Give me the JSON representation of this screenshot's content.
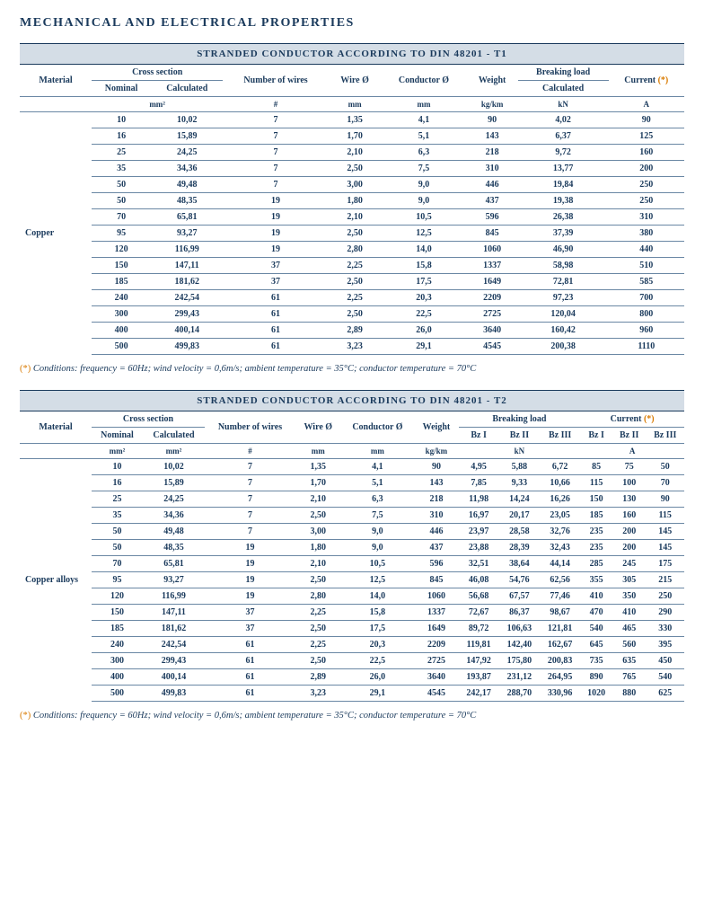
{
  "page_title": "MECHANICAL AND ELECTRICAL PROPERTIES",
  "footnote_mark": "(*)",
  "footnote": "Conditions: frequency = 60Hz; wind velocity = 0,6m/s; ambient temperature = 35°C; conductor temperature = 70°C",
  "t1": {
    "title": "STRANDED CONDUCTOR ACCORDING TO DIN 48201 - T1",
    "material": "Copper",
    "h": {
      "material": "Material",
      "cross": "Cross section",
      "nom": "Nominal",
      "calc": "Calculated",
      "nwires": "Number of wires",
      "wire": "Wire Ø",
      "cond": "Conductor Ø",
      "weight": "Weight",
      "break": "Breaking load",
      "current": "Current",
      "mm2": "mm²",
      "num": "#",
      "mm": "mm",
      "kgkm": "kg/km",
      "kn": "kN",
      "a": "A"
    },
    "rows": [
      [
        "10",
        "10,02",
        "7",
        "1,35",
        "4,1",
        "90",
        "4,02",
        "90"
      ],
      [
        "16",
        "15,89",
        "7",
        "1,70",
        "5,1",
        "143",
        "6,37",
        "125"
      ],
      [
        "25",
        "24,25",
        "7",
        "2,10",
        "6,3",
        "218",
        "9,72",
        "160"
      ],
      [
        "35",
        "34,36",
        "7",
        "2,50",
        "7,5",
        "310",
        "13,77",
        "200"
      ],
      [
        "50",
        "49,48",
        "7",
        "3,00",
        "9,0",
        "446",
        "19,84",
        "250"
      ],
      [
        "50",
        "48,35",
        "19",
        "1,80",
        "9,0",
        "437",
        "19,38",
        "250"
      ],
      [
        "70",
        "65,81",
        "19",
        "2,10",
        "10,5",
        "596",
        "26,38",
        "310"
      ],
      [
        "95",
        "93,27",
        "19",
        "2,50",
        "12,5",
        "845",
        "37,39",
        "380"
      ],
      [
        "120",
        "116,99",
        "19",
        "2,80",
        "14,0",
        "1060",
        "46,90",
        "440"
      ],
      [
        "150",
        "147,11",
        "37",
        "2,25",
        "15,8",
        "1337",
        "58,98",
        "510"
      ],
      [
        "185",
        "181,62",
        "37",
        "2,50",
        "17,5",
        "1649",
        "72,81",
        "585"
      ],
      [
        "240",
        "242,54",
        "61",
        "2,25",
        "20,3",
        "2209",
        "97,23",
        "700"
      ],
      [
        "300",
        "299,43",
        "61",
        "2,50",
        "22,5",
        "2725",
        "120,04",
        "800"
      ],
      [
        "400",
        "400,14",
        "61",
        "2,89",
        "26,0",
        "3640",
        "160,42",
        "960"
      ],
      [
        "500",
        "499,83",
        "61",
        "3,23",
        "29,1",
        "4545",
        "200,38",
        "1110"
      ]
    ]
  },
  "t2": {
    "title": "STRANDED CONDUCTOR ACCORDING TO DIN 48201 - T2",
    "material": "Copper alloys",
    "h": {
      "material": "Material",
      "cross": "Cross section",
      "nom": "Nominal",
      "calc": "Calculated",
      "nwires": "Number of wires",
      "wire": "Wire Ø",
      "cond": "Conductor Ø",
      "weight": "Weight",
      "break": "Breaking load",
      "current": "Current",
      "bz1": "Bz I",
      "bz2": "Bz II",
      "bz3": "Bz III",
      "mm2": "mm²",
      "num": "#",
      "mm": "mm",
      "kgkm": "kg/km",
      "kn": "kN",
      "a": "A"
    },
    "rows": [
      [
        "10",
        "10,02",
        "7",
        "1,35",
        "4,1",
        "90",
        "4,95",
        "5,88",
        "6,72",
        "85",
        "75",
        "50"
      ],
      [
        "16",
        "15,89",
        "7",
        "1,70",
        "5,1",
        "143",
        "7,85",
        "9,33",
        "10,66",
        "115",
        "100",
        "70"
      ],
      [
        "25",
        "24,25",
        "7",
        "2,10",
        "6,3",
        "218",
        "11,98",
        "14,24",
        "16,26",
        "150",
        "130",
        "90"
      ],
      [
        "35",
        "34,36",
        "7",
        "2,50",
        "7,5",
        "310",
        "16,97",
        "20,17",
        "23,05",
        "185",
        "160",
        "115"
      ],
      [
        "50",
        "49,48",
        "7",
        "3,00",
        "9,0",
        "446",
        "23,97",
        "28,58",
        "32,76",
        "235",
        "200",
        "145"
      ],
      [
        "50",
        "48,35",
        "19",
        "1,80",
        "9,0",
        "437",
        "23,88",
        "28,39",
        "32,43",
        "235",
        "200",
        "145"
      ],
      [
        "70",
        "65,81",
        "19",
        "2,10",
        "10,5",
        "596",
        "32,51",
        "38,64",
        "44,14",
        "285",
        "245",
        "175"
      ],
      [
        "95",
        "93,27",
        "19",
        "2,50",
        "12,5",
        "845",
        "46,08",
        "54,76",
        "62,56",
        "355",
        "305",
        "215"
      ],
      [
        "120",
        "116,99",
        "19",
        "2,80",
        "14,0",
        "1060",
        "56,68",
        "67,57",
        "77,46",
        "410",
        "350",
        "250"
      ],
      [
        "150",
        "147,11",
        "37",
        "2,25",
        "15,8",
        "1337",
        "72,67",
        "86,37",
        "98,67",
        "470",
        "410",
        "290"
      ],
      [
        "185",
        "181,62",
        "37",
        "2,50",
        "17,5",
        "1649",
        "89,72",
        "106,63",
        "121,81",
        "540",
        "465",
        "330"
      ],
      [
        "240",
        "242,54",
        "61",
        "2,25",
        "20,3",
        "2209",
        "119,81",
        "142,40",
        "162,67",
        "645",
        "560",
        "395"
      ],
      [
        "300",
        "299,43",
        "61",
        "2,50",
        "22,5",
        "2725",
        "147,92",
        "175,80",
        "200,83",
        "735",
        "635",
        "450"
      ],
      [
        "400",
        "400,14",
        "61",
        "2,89",
        "26,0",
        "3640",
        "193,87",
        "231,12",
        "264,95",
        "890",
        "765",
        "540"
      ],
      [
        "500",
        "499,83",
        "61",
        "3,23",
        "29,1",
        "4545",
        "242,17",
        "288,70",
        "330,96",
        "1020",
        "880",
        "625"
      ]
    ]
  }
}
